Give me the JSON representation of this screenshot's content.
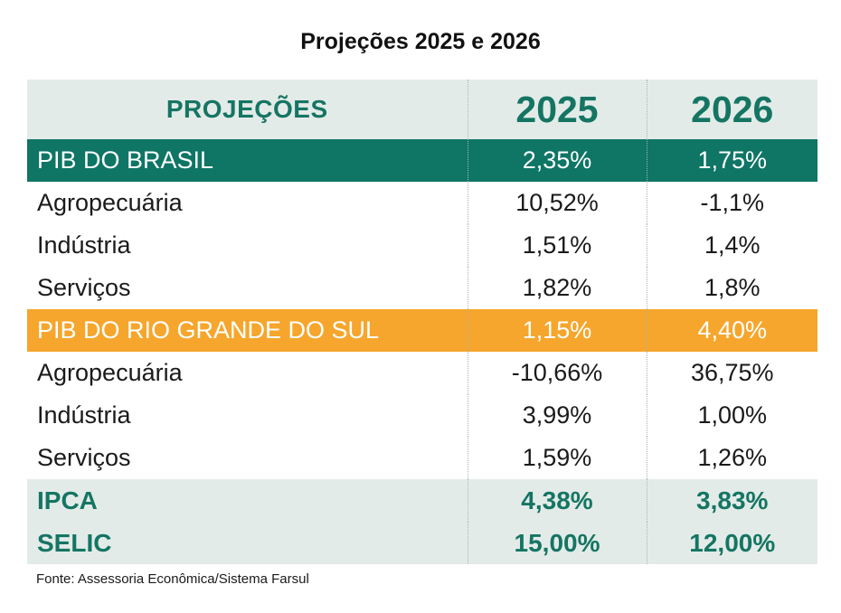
{
  "title": "Projeções 2025 e 2026",
  "chart_data": {
    "type": "table",
    "title": "Projeções 2025 e 2026",
    "columns": [
      "PROJEÇÕES",
      "2025",
      "2026"
    ],
    "rows": [
      {
        "label": "PIB DO BRASIL",
        "style": "brasil",
        "values": [
          "2,35%",
          "1,75%"
        ]
      },
      {
        "label": "Agropecuária",
        "style": "sub",
        "values": [
          "10,52%",
          "-1,1%"
        ]
      },
      {
        "label": "Indústria",
        "style": "sub",
        "values": [
          "1,51%",
          "1,4%"
        ]
      },
      {
        "label": "Serviços",
        "style": "sub",
        "values": [
          "1,82%",
          "1,8%"
        ]
      },
      {
        "label": "PIB DO RIO GRANDE DO SUL",
        "style": "rs",
        "values": [
          "1,15%",
          "4,40%"
        ]
      },
      {
        "label": "Agropecuária",
        "style": "sub",
        "values": [
          "-10,66%",
          "36,75%"
        ]
      },
      {
        "label": "Indústria",
        "style": "sub",
        "values": [
          "3,99%",
          "1,00%"
        ]
      },
      {
        "label": "Serviços",
        "style": "sub",
        "values": [
          "1,59%",
          "1,26%"
        ]
      },
      {
        "label": "IPCA",
        "style": "ind",
        "values": [
          "4,38%",
          "3,83%"
        ]
      },
      {
        "label": "SELIC",
        "style": "ind",
        "values": [
          "15,00%",
          "12,00%"
        ]
      }
    ],
    "source": "Fonte: Assessoria Econômica/Sistema Farsul"
  },
  "colors": {
    "teal": "#0f7565",
    "teal_text": "#157563",
    "orange": "#f6a62c",
    "light_bg": "#e3ebe8"
  }
}
